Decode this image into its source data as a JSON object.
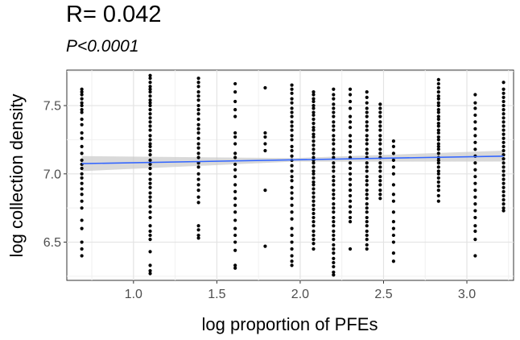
{
  "header": {
    "title": "R= 0.042",
    "subtitle": "P<0.0001"
  },
  "chart_data": {
    "type": "scatter",
    "xlabel": "log proportion of PFEs",
    "ylabel": "log collection density",
    "xlim": [
      0.6,
      3.28
    ],
    "ylim": [
      6.22,
      7.76
    ],
    "x_ticks": [
      1.0,
      1.5,
      2.0,
      2.5,
      3.0
    ],
    "x_tick_labels": [
      "1.0",
      "1.5",
      "2.0",
      "2.5",
      "3.0"
    ],
    "y_ticks": [
      6.5,
      7.0,
      7.5
    ],
    "y_tick_labels": [
      "6.5",
      "7.0",
      "7.5"
    ],
    "grid": true,
    "point_color": "#000000",
    "fit_line": {
      "type": "linear",
      "color": "#3366ff",
      "band_color": "#cccccc",
      "x": [
        0.69,
        3.22
      ],
      "y": [
        7.075,
        7.13
      ],
      "ci_halfwidth": [
        0.055,
        0.013,
        0.04
      ]
    },
    "series": [
      {
        "x": 0.69,
        "y": [
          7.62,
          7.6,
          7.58,
          7.55,
          7.52,
          7.5,
          7.47,
          7.45,
          7.4,
          7.36,
          7.3,
          7.26,
          7.2,
          7.15,
          7.1,
          7.07,
          7.04,
          7.0,
          6.97,
          6.93,
          6.89,
          6.85,
          6.8,
          6.75,
          6.66,
          6.6,
          6.5,
          6.45,
          6.4
        ]
      },
      {
        "x": 1.1,
        "y": [
          7.72,
          7.7,
          7.67,
          7.64,
          7.62,
          7.6,
          7.57,
          7.54,
          7.52,
          7.5,
          7.47,
          7.44,
          7.41,
          7.38,
          7.35,
          7.32,
          7.28,
          7.25,
          7.22,
          7.2,
          7.17,
          7.14,
          7.1,
          7.07,
          7.04,
          7.0,
          6.96,
          6.93,
          6.9,
          6.86,
          6.83,
          6.8,
          6.76,
          6.72,
          6.68,
          6.62,
          6.58,
          6.55,
          6.52,
          6.43,
          6.33,
          6.29,
          6.27
        ]
      },
      {
        "x": 1.39,
        "y": [
          7.7,
          7.67,
          7.64,
          7.6,
          7.57,
          7.54,
          7.5,
          7.47,
          7.44,
          7.4,
          7.36,
          7.33,
          7.3,
          7.26,
          7.22,
          7.19,
          7.15,
          7.12,
          7.08,
          7.05,
          7.0,
          6.96,
          6.92,
          6.88,
          6.83,
          6.79,
          6.62,
          6.59,
          6.55,
          6.53
        ]
      },
      {
        "x": 1.61,
        "y": [
          7.66,
          7.6,
          7.53,
          7.47,
          7.42,
          7.3,
          7.27,
          7.22,
          7.15,
          7.12,
          7.07,
          7.03,
          6.98,
          6.92,
          6.87,
          6.82,
          6.77,
          6.72,
          6.66,
          6.6,
          6.55,
          6.5,
          6.44,
          6.33,
          6.31
        ]
      },
      {
        "x": 1.79,
        "y": [
          7.63,
          7.3,
          7.27,
          7.22,
          7.17,
          6.88,
          6.47
        ]
      },
      {
        "x": 1.95,
        "y": [
          7.65,
          7.62,
          7.59,
          7.55,
          7.52,
          7.48,
          7.45,
          7.42,
          7.38,
          7.35,
          7.32,
          7.28,
          7.25,
          7.2,
          7.17,
          7.13,
          7.1,
          7.06,
          7.02,
          6.98,
          6.95,
          6.9,
          6.86,
          6.82,
          6.77,
          6.72,
          6.67,
          6.6,
          6.55,
          6.5,
          6.45,
          6.4,
          6.36,
          6.33
        ]
      },
      {
        "x": 2.08,
        "y": [
          7.6,
          7.58,
          7.55,
          7.53,
          7.5,
          7.48,
          7.45,
          7.43,
          7.4,
          7.37,
          7.34,
          7.32,
          7.29,
          7.27,
          7.24,
          7.21,
          7.18,
          7.15,
          7.12,
          7.1,
          7.08,
          7.05,
          7.02,
          7.0,
          6.97,
          6.94,
          6.92,
          6.89,
          6.86,
          6.83,
          6.8,
          6.77,
          6.74,
          6.71,
          6.68,
          6.65,
          6.62,
          6.58,
          6.55,
          6.52,
          6.49,
          6.45
        ]
      },
      {
        "x": 2.2,
        "y": [
          7.62,
          7.58,
          7.55,
          7.51,
          7.48,
          7.45,
          7.42,
          7.38,
          7.35,
          7.32,
          7.28,
          7.25,
          7.22,
          7.18,
          7.15,
          7.12,
          7.08,
          7.05,
          7.02,
          6.98,
          6.95,
          6.92,
          6.88,
          6.85,
          6.82,
          6.78,
          6.75,
          6.72,
          6.68,
          6.65,
          6.62,
          6.58,
          6.55,
          6.52,
          6.48,
          6.45,
          6.42,
          6.38,
          6.35,
          6.32,
          6.28,
          6.26
        ]
      },
      {
        "x": 2.3,
        "y": [
          7.62,
          7.58,
          7.53,
          7.48,
          7.42,
          7.38,
          7.34,
          7.28,
          7.24,
          7.2,
          7.16,
          7.12,
          7.08,
          7.04,
          7.0,
          6.96,
          6.92,
          6.88,
          6.84,
          6.8,
          6.76,
          6.72,
          6.68,
          6.65,
          6.45
        ]
      },
      {
        "x": 2.4,
        "y": [
          7.6,
          7.56,
          7.52,
          7.48,
          7.45,
          7.42,
          7.38,
          7.35,
          7.32,
          7.28,
          7.25,
          7.22,
          7.18,
          7.15,
          7.12,
          7.08,
          7.05,
          7.02,
          6.98,
          6.95,
          6.92,
          6.88,
          6.85,
          6.82,
          6.78,
          6.75,
          6.72,
          6.68,
          6.65,
          6.62,
          6.58,
          6.55,
          6.52,
          6.48,
          6.45
        ]
      },
      {
        "x": 2.48,
        "y": [
          7.51,
          7.48,
          7.45,
          7.42,
          7.38,
          7.35,
          7.32,
          7.28,
          7.25,
          7.22,
          7.18,
          7.15,
          7.12,
          7.08,
          7.05,
          7.02,
          6.98,
          6.95,
          6.92,
          6.88,
          6.85,
          6.82
        ]
      },
      {
        "x": 2.56,
        "y": [
          7.24,
          7.2,
          7.15,
          7.1,
          7.05,
          7.0,
          6.92,
          6.85,
          6.8,
          6.72,
          6.65,
          6.6,
          6.55,
          6.5,
          6.42,
          6.36
        ]
      },
      {
        "x": 2.83,
        "y": [
          7.69,
          7.66,
          7.63,
          7.6,
          7.57,
          7.55,
          7.52,
          7.5,
          7.47,
          7.45,
          7.42,
          7.4,
          7.37,
          7.35,
          7.32,
          7.3,
          7.27,
          7.25,
          7.22,
          7.2,
          7.18,
          7.15,
          7.12,
          7.1,
          7.08,
          7.05,
          7.02,
          7.0,
          6.97,
          6.94,
          6.91,
          6.88,
          6.84,
          6.8
        ]
      },
      {
        "x": 3.05,
        "y": [
          7.58,
          7.52,
          7.48,
          7.43,
          7.38,
          7.33,
          7.28,
          7.23,
          7.18,
          7.13,
          7.08,
          7.03,
          6.98,
          6.93,
          6.88,
          6.83,
          6.78,
          6.73,
          6.68,
          6.62,
          6.58,
          6.52,
          6.4
        ]
      },
      {
        "x": 3.22,
        "y": [
          7.67,
          7.62,
          7.59,
          7.56,
          7.53,
          7.5,
          7.47,
          7.44,
          7.41,
          7.38,
          7.35,
          7.32,
          7.29,
          7.26,
          7.23,
          7.2,
          7.17,
          7.14,
          7.11,
          7.08,
          7.05,
          7.02,
          6.99,
          6.96,
          6.93,
          6.9,
          6.87,
          6.84,
          6.81,
          6.78,
          6.75,
          6.73
        ]
      }
    ]
  }
}
